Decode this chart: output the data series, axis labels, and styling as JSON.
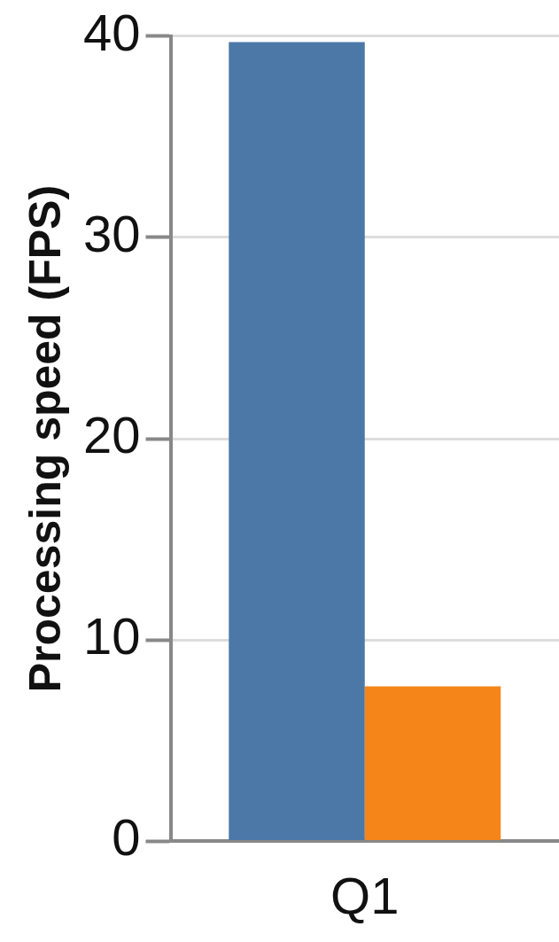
{
  "chart_data": {
    "type": "bar",
    "ylabel": "Processing speed (FPS)",
    "categories": [
      "Q1"
    ],
    "series": [
      {
        "color": "#4c78a8",
        "values": [
          39.7
        ]
      },
      {
        "color": "#f58518",
        "values": [
          7.7
        ]
      }
    ],
    "ylim": [
      0,
      40
    ],
    "yticks": [
      0,
      10,
      20,
      30,
      40
    ],
    "grid": "y",
    "legend": false
  }
}
